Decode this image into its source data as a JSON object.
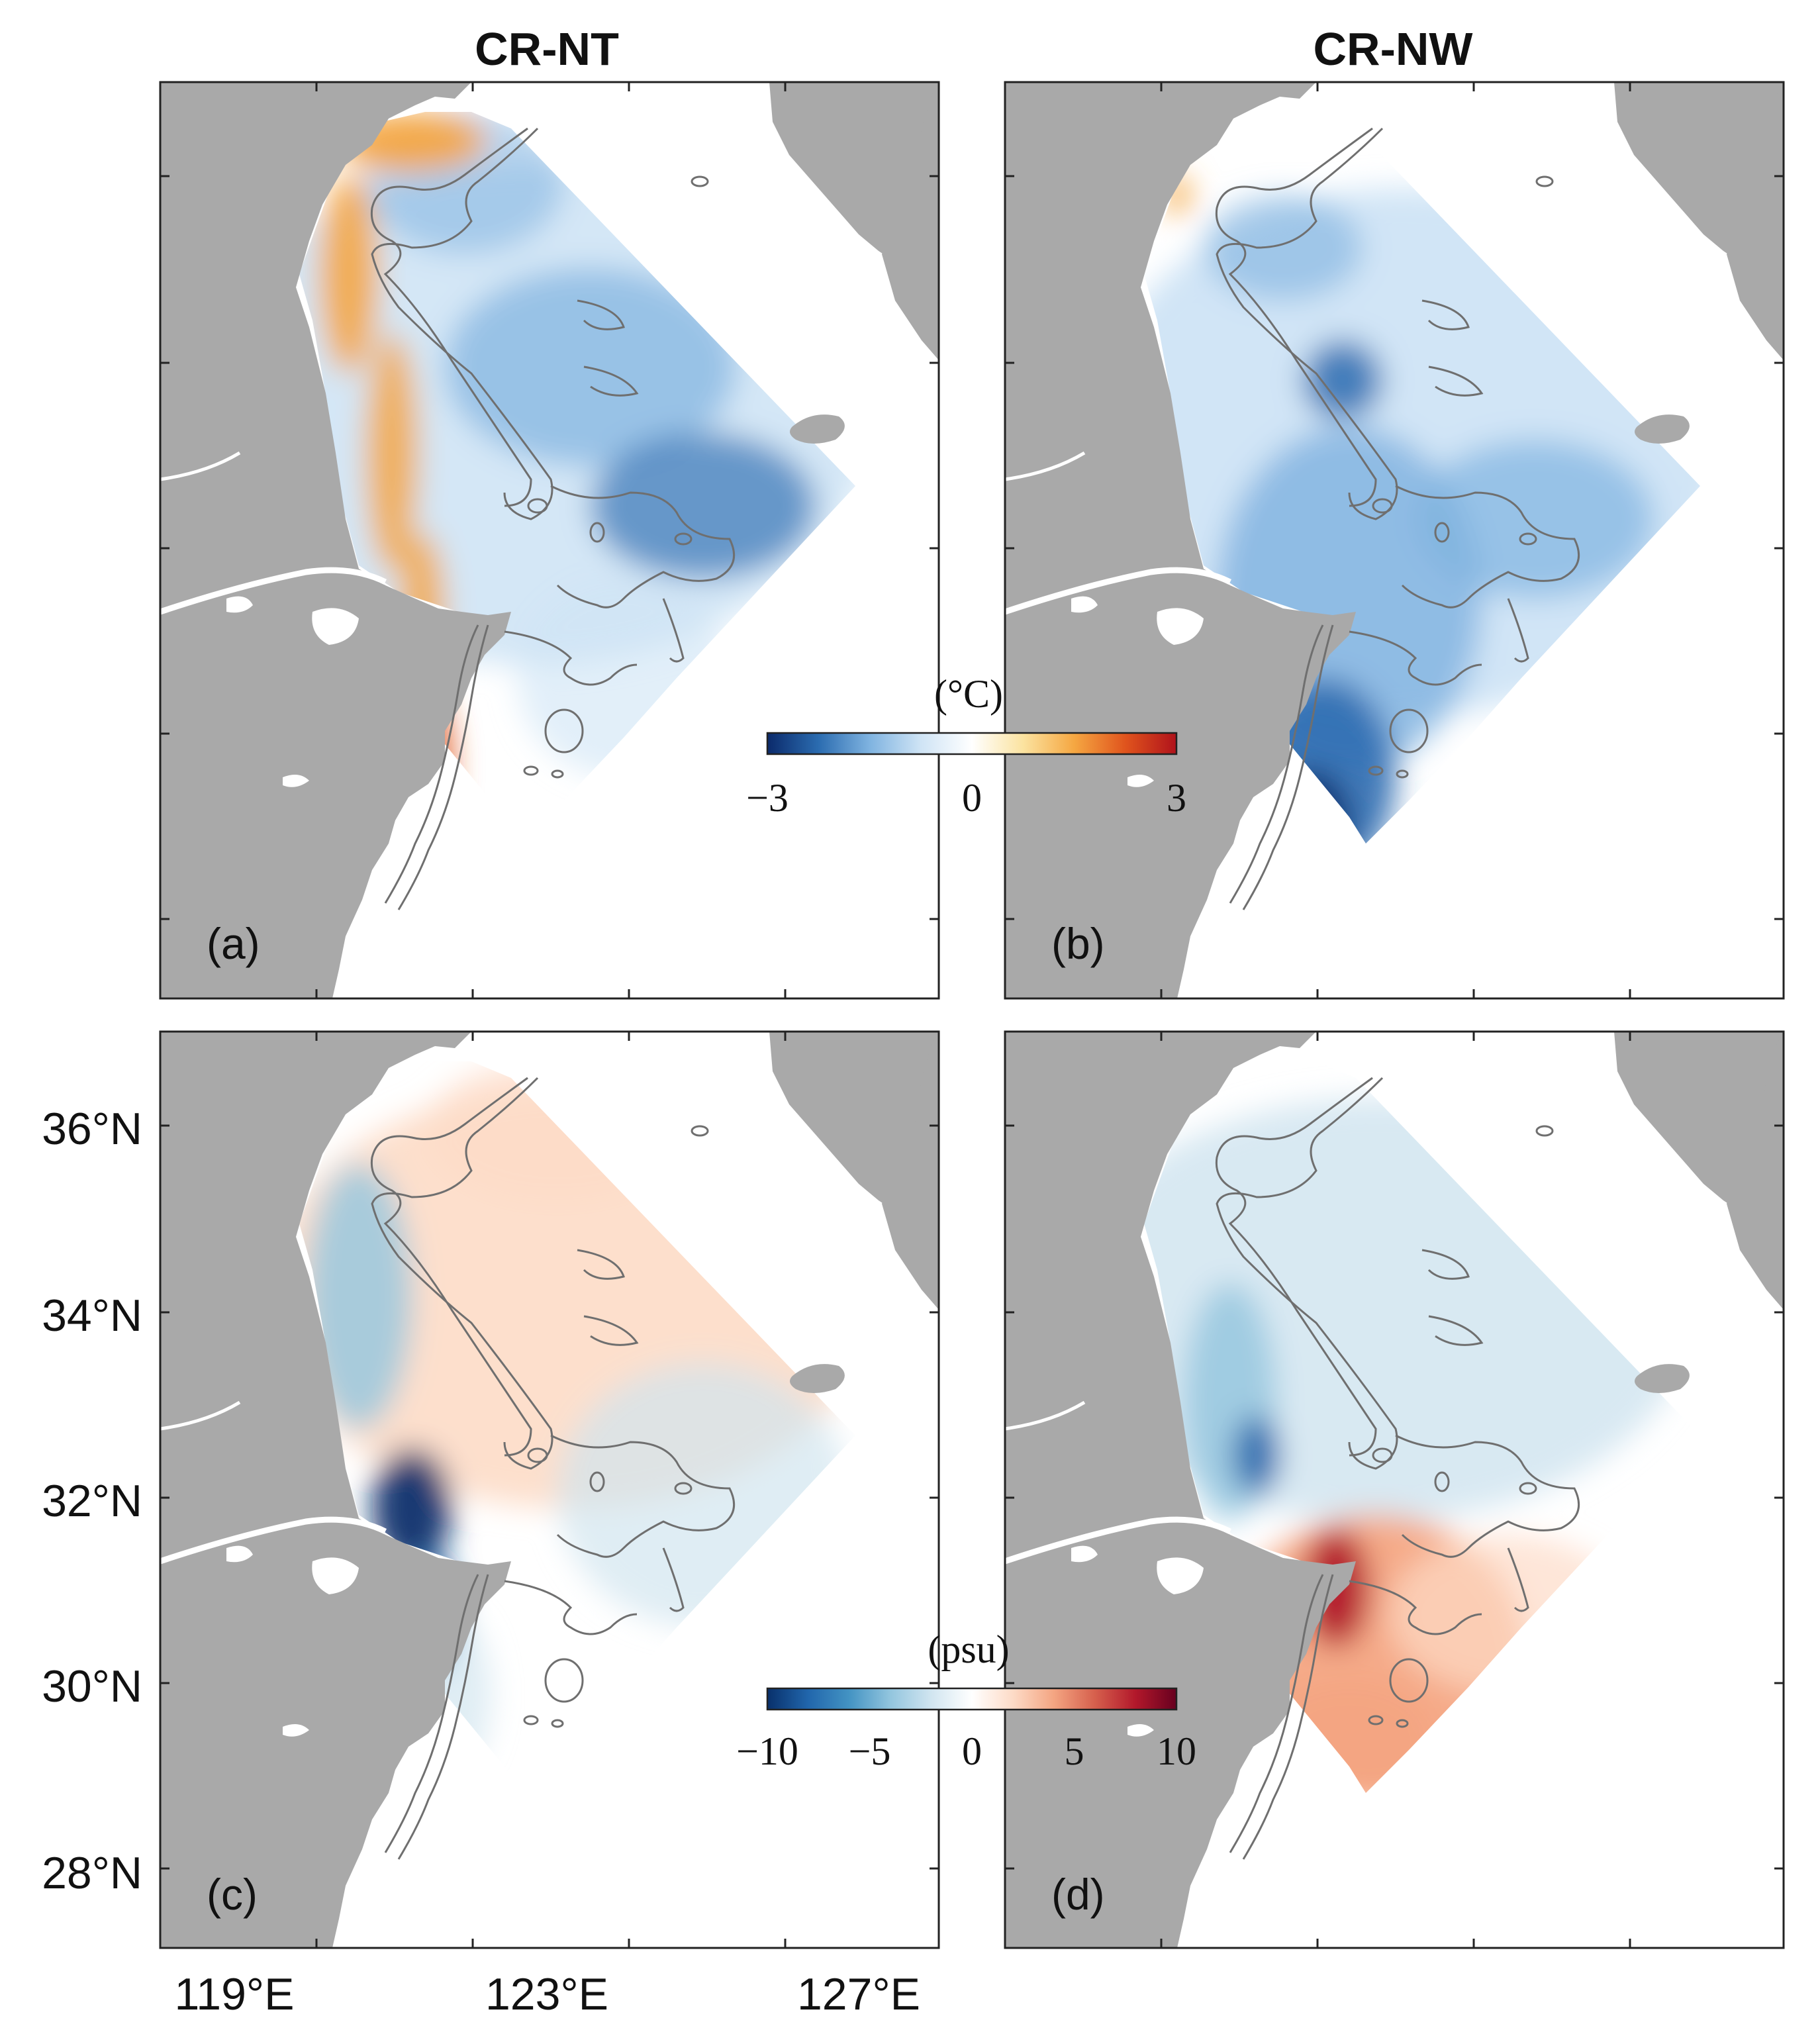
{
  "figure": {
    "columns": [
      {
        "id": "left",
        "title": "CR-NT"
      },
      {
        "id": "right",
        "title": "CR-NW"
      }
    ],
    "panels": [
      {
        "id": "a",
        "label": "(a)",
        "variable": "temperature",
        "experiment": "CR-NT",
        "pattern": "warm-coast-cool-shelf"
      },
      {
        "id": "b",
        "label": "(b)",
        "variable": "temperature",
        "experiment": "CR-NW",
        "pattern": "cool-all"
      },
      {
        "id": "c",
        "label": "(c)",
        "variable": "salinity",
        "experiment": "CR-NT",
        "pattern": "fresh-coast-salty-shelf"
      },
      {
        "id": "d",
        "label": "(d)",
        "variable": "salinity",
        "experiment": "CR-NW",
        "pattern": "fresh-north-salty-south"
      }
    ],
    "lat_ticks": [
      "36°N",
      "34°N",
      "32°N",
      "30°N",
      "28°N"
    ],
    "lon_ticks": [
      "119°E",
      "123°E",
      "127°E"
    ],
    "colorbars": [
      {
        "id": "temp",
        "unit": "(°C)",
        "min": -3,
        "max": 3,
        "tick_values": [
          -3,
          0,
          3
        ],
        "tick_labels": [
          "−3",
          "0",
          "3"
        ]
      },
      {
        "id": "salt",
        "unit": "(psu)",
        "min": -10,
        "max": 10,
        "tick_values": [
          -10,
          -5,
          0,
          5,
          10
        ],
        "tick_labels": [
          "−10",
          "−5",
          "0",
          "5",
          "10"
        ]
      }
    ],
    "colormap": [
      "#08306b",
      "#2166ac",
      "#4393c3",
      "#92c5de",
      "#d1e5f0",
      "#ffffff",
      "#fddbc7",
      "#f4a582",
      "#d6604d",
      "#b2182b",
      "#67001f"
    ],
    "temp_colormap": [
      "#0b2a6b",
      "#2b6cb0",
      "#7fb3e0",
      "#cfe4f5",
      "#ffffff",
      "#fbe3a0",
      "#f5a742",
      "#e0541d",
      "#b0121b"
    ],
    "colors": {
      "land": "#a9a9a9",
      "isobath": "#6f6f6f",
      "frame": "#222222"
    }
  }
}
